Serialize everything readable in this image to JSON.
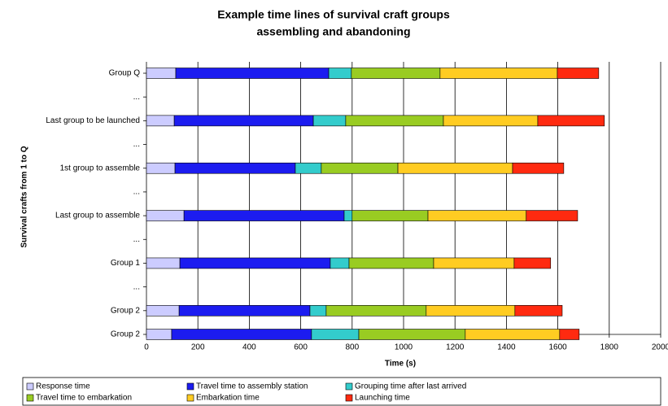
{
  "chart_data": {
    "type": "stacked-barh",
    "title": [
      "Example time lines of survival craft groups",
      "assembling and abandoning"
    ],
    "xlabel": "Time (s)",
    "ylabel": "Survival crafts from 1 to Q",
    "categories": [
      "Group Q",
      "...",
      "Last group to be launched",
      "...",
      "1st group to assemble",
      "...",
      "Last group to assemble",
      "...",
      "Group 1",
      "...",
      "Group 2",
      "Group 2"
    ],
    "series": [
      {
        "name": "Response time",
        "color": "#ccccff",
        "values": [
          114,
          null,
          108,
          null,
          111,
          null,
          146,
          null,
          130,
          null,
          127,
          98
        ]
      },
      {
        "name": "Travel time to assembly station",
        "color": "#1c1cf0",
        "values": [
          595,
          null,
          541,
          null,
          468,
          null,
          623,
          null,
          585,
          null,
          509,
          544
        ]
      },
      {
        "name": "Grouping time after last arrived",
        "color": "#33cccc",
        "values": [
          88,
          null,
          126,
          null,
          101,
          null,
          31,
          null,
          73,
          null,
          63,
          184
        ]
      },
      {
        "name": "Travel time to embarkation",
        "color": "#99cc22",
        "values": [
          345,
          null,
          380,
          null,
          298,
          null,
          295,
          null,
          329,
          null,
          389,
          414
        ]
      },
      {
        "name": "Embarkation time",
        "color": "#ffcc22",
        "values": [
          456,
          null,
          367,
          null,
          446,
          null,
          382,
          null,
          313,
          null,
          345,
          367
        ]
      },
      {
        "name": "Launching time",
        "color": "#ff2a10",
        "values": [
          161,
          null,
          259,
          null,
          199,
          null,
          200,
          null,
          142,
          null,
          184,
          76
        ]
      }
    ],
    "xlim": [
      0,
      2000
    ],
    "xticks": [
      0,
      200,
      400,
      600,
      800,
      1000,
      1200,
      1400,
      1600,
      1800,
      2000
    ],
    "grid": true,
    "legend": "bottom"
  }
}
